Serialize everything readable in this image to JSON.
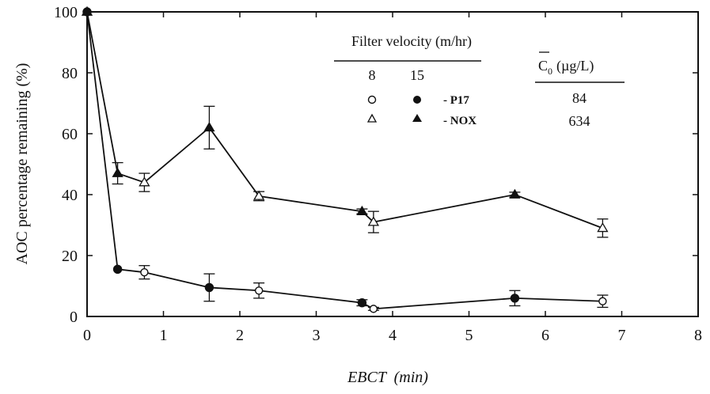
{
  "chart_data": {
    "type": "scatter",
    "xlabel_main": "EBCT",
    "xlabel_unit": "(min)",
    "ylabel": "AOC percentage remaining (%)",
    "xlim": [
      0,
      8
    ],
    "ylim": [
      0,
      100
    ],
    "x_ticks": [
      "0",
      "1",
      "2",
      "3",
      "4",
      "5",
      "6",
      "7",
      "8"
    ],
    "y_ticks": [
      "0",
      "20",
      "40",
      "60",
      "80",
      "100"
    ],
    "grid": false,
    "legend": {
      "velocity_header": "Filter velocity (m/hr)",
      "velocity_values": [
        "8",
        "15"
      ],
      "c0_header_symbol": "C",
      "c0_header_sub": "0",
      "c0_header_unit": "(µg/L)",
      "rows": [
        {
          "label": "- P17",
          "c0": "84"
        },
        {
          "label": "- NOX",
          "c0": "634"
        }
      ]
    },
    "series": [
      {
        "name": "P17",
        "marker": "circle",
        "points": [
          {
            "x": 0.0,
            "y": 100,
            "err": 0,
            "velocity": 15
          },
          {
            "x": 0.4,
            "y": 15.5,
            "err": 0,
            "velocity": 15
          },
          {
            "x": 0.75,
            "y": 14.5,
            "err": 2.2,
            "velocity": 8
          },
          {
            "x": 1.6,
            "y": 9.5,
            "err": 4.5,
            "velocity": 15
          },
          {
            "x": 2.25,
            "y": 8.5,
            "err": 2.5,
            "velocity": 8
          },
          {
            "x": 3.6,
            "y": 4.5,
            "err": 1.0,
            "velocity": 15
          },
          {
            "x": 3.75,
            "y": 2.5,
            "err": 0.5,
            "velocity": 8
          },
          {
            "x": 5.6,
            "y": 6.0,
            "err": 2.5,
            "velocity": 15
          },
          {
            "x": 6.75,
            "y": 5.0,
            "err": 2.0,
            "velocity": 8
          }
        ]
      },
      {
        "name": "NOX",
        "marker": "triangle",
        "points": [
          {
            "x": 0.0,
            "y": 100,
            "err": 0,
            "velocity": 15
          },
          {
            "x": 0.4,
            "y": 47,
            "err": 3.5,
            "velocity": 15
          },
          {
            "x": 0.75,
            "y": 44,
            "err": 3.0,
            "velocity": 8
          },
          {
            "x": 1.6,
            "y": 62,
            "err": 7.0,
            "velocity": 15
          },
          {
            "x": 2.25,
            "y": 39.5,
            "err": 1.5,
            "velocity": 8
          },
          {
            "x": 3.6,
            "y": 34.5,
            "err": 0.8,
            "velocity": 15
          },
          {
            "x": 3.75,
            "y": 31,
            "err": 3.5,
            "velocity": 8
          },
          {
            "x": 5.6,
            "y": 40,
            "err": 0.8,
            "velocity": 15
          },
          {
            "x": 6.75,
            "y": 29,
            "err": 3.0,
            "velocity": 8
          }
        ]
      }
    ]
  }
}
